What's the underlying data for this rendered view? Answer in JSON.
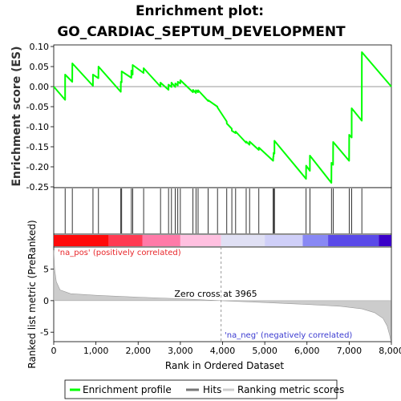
{
  "chart_data": {
    "type": "line",
    "title_line1": "Enrichment plot:",
    "title_line2": "GO_CARDIAC_SEPTUM_DEVELOPMENT",
    "es_ylabel": "Enrichment score (ES)",
    "metric_ylabel": "Ranked list metric (PreRanked)",
    "xlabel": "Rank in Ordered Dataset",
    "xlim": [
      0,
      8000
    ],
    "es_ylim": [
      -0.25,
      0.1
    ],
    "es_yticks": [
      "0.10",
      "0.05",
      "0.00",
      "-0.05",
      "-0.10",
      "-0.15",
      "-0.20",
      "-0.25"
    ],
    "metric_ylim": [
      -6.5,
      8.5
    ],
    "metric_yticks": [
      "5",
      "0",
      "-5"
    ],
    "xticks": [
      "0",
      "1,000",
      "2,000",
      "3,000",
      "4,000",
      "5,000",
      "6,000",
      "7,000",
      "8,000"
    ],
    "zero_cross_label": "Zero cross at 3965",
    "zero_cross": 3965,
    "pos_label": "'na_pos' (positively correlated)",
    "neg_label": "'na_neg' (negatively correlated)",
    "hits": [
      270,
      440,
      930,
      1060,
      1590,
      1610,
      1840,
      1870,
      2130,
      2530,
      2720,
      2790,
      2880,
      2940,
      3000,
      3300,
      3370,
      3420,
      3660,
      3880,
      4100,
      4220,
      4310,
      4560,
      4640,
      4860,
      5200,
      5210,
      5230,
      5980,
      6070,
      6580,
      6620,
      7000,
      7060,
      7300
    ],
    "es_points": [
      [
        0,
        0.0
      ],
      [
        269,
        -0.033
      ],
      [
        270,
        0.03
      ],
      [
        439,
        0.012
      ],
      [
        440,
        0.058
      ],
      [
        929,
        0.002
      ],
      [
        930,
        0.03
      ],
      [
        1059,
        0.021
      ],
      [
        1060,
        0.05
      ],
      [
        1589,
        -0.013
      ],
      [
        1590,
        0.012
      ],
      [
        1609,
        0.011
      ],
      [
        1610,
        0.038
      ],
      [
        1839,
        0.022
      ],
      [
        1840,
        0.04
      ],
      [
        1869,
        0.03
      ],
      [
        1870,
        0.054
      ],
      [
        2129,
        0.034
      ],
      [
        2130,
        0.046
      ],
      [
        2529,
        0.0
      ],
      [
        2530,
        0.01
      ],
      [
        2719,
        -0.008
      ],
      [
        2720,
        0.005
      ],
      [
        2789,
        -0.001
      ],
      [
        2790,
        0.01
      ],
      [
        2879,
        -0.001
      ],
      [
        2880,
        0.008
      ],
      [
        2939,
        0.003
      ],
      [
        2940,
        0.012
      ],
      [
        2999,
        0.008
      ],
      [
        3000,
        0.016
      ],
      [
        3299,
        -0.014
      ],
      [
        3300,
        -0.008
      ],
      [
        3369,
        -0.016
      ],
      [
        3370,
        -0.009
      ],
      [
        3419,
        -0.014
      ],
      [
        3420,
        -0.009
      ],
      [
        3659,
        -0.036
      ],
      [
        3660,
        -0.034
      ],
      [
        3879,
        -0.05
      ],
      [
        3880,
        -0.052
      ],
      [
        4099,
        -0.087
      ],
      [
        4100,
        -0.092
      ],
      [
        4219,
        -0.105
      ],
      [
        4220,
        -0.11
      ],
      [
        4309,
        -0.116
      ],
      [
        4310,
        -0.112
      ],
      [
        4559,
        -0.14
      ],
      [
        4560,
        -0.137
      ],
      [
        4639,
        -0.145
      ],
      [
        4640,
        -0.137
      ],
      [
        4859,
        -0.158
      ],
      [
        4860,
        -0.152
      ],
      [
        5199,
        -0.185
      ],
      [
        5200,
        -0.175
      ],
      [
        5209,
        -0.175
      ],
      [
        5210,
        -0.165
      ],
      [
        5229,
        -0.167
      ],
      [
        5230,
        -0.135
      ],
      [
        5979,
        -0.23
      ],
      [
        5980,
        -0.197
      ],
      [
        6069,
        -0.21
      ],
      [
        6070,
        -0.172
      ],
      [
        6579,
        -0.24
      ],
      [
        6580,
        -0.19
      ],
      [
        6619,
        -0.195
      ],
      [
        6620,
        -0.138
      ],
      [
        6999,
        -0.185
      ],
      [
        7000,
        -0.12
      ],
      [
        7059,
        -0.127
      ],
      [
        7060,
        -0.054
      ],
      [
        7299,
        -0.085
      ],
      [
        7300,
        0.086
      ],
      [
        8000,
        0.0
      ]
    ],
    "metric_points": [
      [
        0,
        8.0
      ],
      [
        20,
        5.0
      ],
      [
        60,
        3.0
      ],
      [
        150,
        1.7
      ],
      [
        400,
        1.1
      ],
      [
        1000,
        0.85
      ],
      [
        2000,
        0.55
      ],
      [
        3000,
        0.3
      ],
      [
        3965,
        0.0
      ],
      [
        5000,
        -0.3
      ],
      [
        6000,
        -0.6
      ],
      [
        6800,
        -0.9
      ],
      [
        7300,
        -1.3
      ],
      [
        7600,
        -1.9
      ],
      [
        7800,
        -2.8
      ],
      [
        7900,
        -4.0
      ],
      [
        7960,
        -5.5
      ],
      [
        7990,
        -6.5
      ]
    ]
  },
  "legend": {
    "items": [
      {
        "label": "Enrichment profile",
        "color": "#00ff00"
      },
      {
        "label": "Hits",
        "color": "#777777"
      },
      {
        "label": "Ranking metric scores",
        "color": "#cccccc"
      }
    ]
  },
  "colors": {
    "es_line": "#00ff00",
    "hit_line": "#000000",
    "metric_fill": "#cccccc",
    "metric_line": "#999999",
    "pos_text": "#e8262a",
    "neg_text": "#3a3ad0"
  }
}
